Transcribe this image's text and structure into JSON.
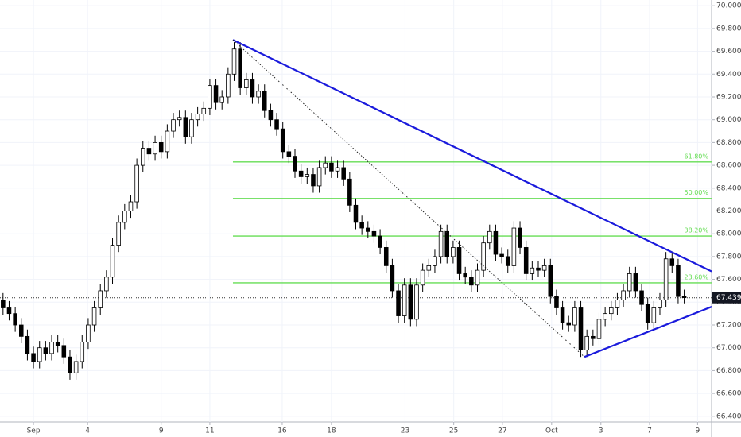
{
  "chart_data": {
    "type": "candlestick",
    "open": [
      67.42,
      67.35,
      67.3,
      67.2,
      67.1,
      66.95,
      66.88,
      67.0,
      66.95,
      67.05,
      67.02,
      66.92,
      66.78,
      66.88,
      67.05,
      67.2,
      67.35,
      67.5,
      67.62,
      67.9,
      68.1,
      68.2,
      68.28,
      68.6,
      68.75,
      68.7,
      68.8,
      68.72,
      68.9,
      69.0,
      69.02,
      68.85,
      69.0,
      69.05,
      69.1,
      69.3,
      69.15,
      69.2,
      69.4,
      69.62,
      69.28,
      69.35,
      69.2,
      69.25,
      69.08,
      69.0,
      68.92,
      68.72,
      68.68,
      68.55,
      68.5,
      68.52,
      68.42,
      68.58,
      68.62,
      68.55,
      68.58,
      68.48,
      68.25,
      68.1,
      68.05,
      68.02,
      67.98,
      67.88,
      67.72,
      67.5,
      67.28,
      67.55,
      67.25,
      67.55,
      67.68,
      67.72,
      67.8,
      68.02,
      67.8,
      67.88,
      67.65,
      67.62,
      67.55,
      67.68,
      67.92,
      68.02,
      67.82,
      67.8,
      67.72,
      68.05,
      67.88,
      67.65,
      67.7,
      67.68,
      67.72,
      67.45,
      67.35,
      67.22,
      67.2,
      67.35,
      66.98,
      67.1,
      67.08,
      67.25,
      67.3,
      67.35,
      67.42,
      67.5,
      67.65,
      67.5,
      67.38,
      67.22,
      67.35,
      67.42,
      67.78,
      67.72,
      67.45
    ],
    "high": [
      67.48,
      67.41,
      67.36,
      67.26,
      67.16,
      67.01,
      67.06,
      67.06,
      67.11,
      67.11,
      67.08,
      66.98,
      66.94,
      67.11,
      67.26,
      67.41,
      67.56,
      67.68,
      67.96,
      68.16,
      68.26,
      68.34,
      68.66,
      68.81,
      68.81,
      68.86,
      68.86,
      68.96,
      69.06,
      69.08,
      69.08,
      69.06,
      69.11,
      69.16,
      69.36,
      69.36,
      69.26,
      69.46,
      69.68,
      69.68,
      69.41,
      69.41,
      69.31,
      69.31,
      69.14,
      69.06,
      68.98,
      68.78,
      68.74,
      68.61,
      68.58,
      68.58,
      68.64,
      68.68,
      68.68,
      68.64,
      68.64,
      68.54,
      68.31,
      68.16,
      68.11,
      68.08,
      68.04,
      67.94,
      67.78,
      67.56,
      67.61,
      67.61,
      67.61,
      67.74,
      67.78,
      67.86,
      68.08,
      68.08,
      67.94,
      67.94,
      67.71,
      67.68,
      67.74,
      67.98,
      68.08,
      68.08,
      67.88,
      67.86,
      68.11,
      68.11,
      67.94,
      67.76,
      67.76,
      67.78,
      67.78,
      67.51,
      67.41,
      67.28,
      67.41,
      67.41,
      67.16,
      67.16,
      67.31,
      67.36,
      67.41,
      67.48,
      67.56,
      67.71,
      67.71,
      67.56,
      67.44,
      67.41,
      67.48,
      67.84,
      67.84,
      67.78,
      67.51
    ],
    "low": [
      67.29,
      67.24,
      67.14,
      67.04,
      66.89,
      66.82,
      66.82,
      66.89,
      66.89,
      66.96,
      66.86,
      66.72,
      66.72,
      66.82,
      66.99,
      67.14,
      67.29,
      67.44,
      67.56,
      67.84,
      68.04,
      68.14,
      68.22,
      68.54,
      68.64,
      68.64,
      68.66,
      68.66,
      68.84,
      68.94,
      68.79,
      68.79,
      68.94,
      68.99,
      69.04,
      69.09,
      69.09,
      69.14,
      69.34,
      69.22,
      69.22,
      69.14,
      69.14,
      69.02,
      68.94,
      68.86,
      68.66,
      68.62,
      68.49,
      68.44,
      68.44,
      68.36,
      68.36,
      68.52,
      68.49,
      68.49,
      68.42,
      68.19,
      68.04,
      67.99,
      67.96,
      67.92,
      67.82,
      67.66,
      67.44,
      67.22,
      67.22,
      67.19,
      67.19,
      67.49,
      67.62,
      67.66,
      67.74,
      67.74,
      67.74,
      67.59,
      67.56,
      67.49,
      67.49,
      67.62,
      67.86,
      67.76,
      67.74,
      67.66,
      67.66,
      67.82,
      67.59,
      67.59,
      67.62,
      67.62,
      67.39,
      67.29,
      67.16,
      67.14,
      67.14,
      66.92,
      66.92,
      67.02,
      67.02,
      67.19,
      67.24,
      67.29,
      67.36,
      67.44,
      67.44,
      67.32,
      67.16,
      67.16,
      67.29,
      67.36,
      67.66,
      67.39,
      67.39
    ],
    "close": [
      67.35,
      67.3,
      67.2,
      67.1,
      66.95,
      66.88,
      67.0,
      66.95,
      67.05,
      67.02,
      66.92,
      66.78,
      66.88,
      67.05,
      67.2,
      67.35,
      67.5,
      67.62,
      67.9,
      68.1,
      68.2,
      68.28,
      68.6,
      68.75,
      68.7,
      68.8,
      68.72,
      68.9,
      69.0,
      69.02,
      68.85,
      69.0,
      69.05,
      69.1,
      69.3,
      69.15,
      69.2,
      69.4,
      69.62,
      69.28,
      69.35,
      69.2,
      69.25,
      69.08,
      69.0,
      68.92,
      68.72,
      68.68,
      68.55,
      68.5,
      68.52,
      68.42,
      68.58,
      68.62,
      68.55,
      68.58,
      68.48,
      68.25,
      68.1,
      68.05,
      68.02,
      67.98,
      67.88,
      67.72,
      67.5,
      67.28,
      67.55,
      67.25,
      67.55,
      67.68,
      67.72,
      67.8,
      68.02,
      67.8,
      67.88,
      67.65,
      67.62,
      67.55,
      67.68,
      67.92,
      68.02,
      67.82,
      67.8,
      67.72,
      68.05,
      67.88,
      67.65,
      67.7,
      67.68,
      67.72,
      67.45,
      67.35,
      67.22,
      67.2,
      67.35,
      66.98,
      67.1,
      67.08,
      67.25,
      67.3,
      67.35,
      67.42,
      67.5,
      67.65,
      67.5,
      67.38,
      67.22,
      67.35,
      67.42,
      67.78,
      67.72,
      67.45,
      67.44
    ],
    "up_color": "#ffffff",
    "down_color": "#000000",
    "wick_color": "#000000",
    "xlim": [
      -0.5,
      116.5
    ],
    "xticks": [
      {
        "value": 5.0,
        "label": "Sep"
      },
      {
        "value": 13.9,
        "label": "4"
      },
      {
        "value": 26.0,
        "label": "9"
      },
      {
        "value": 34.0,
        "label": "11"
      },
      {
        "value": 45.9,
        "label": "16"
      },
      {
        "value": 54.0,
        "label": "18"
      },
      {
        "value": 66.1,
        "label": "23"
      },
      {
        "value": 74.1,
        "label": "25"
      },
      {
        "value": 82.1,
        "label": "27"
      },
      {
        "value": 90.2,
        "label": "Oct"
      },
      {
        "value": 98.3,
        "label": "3"
      },
      {
        "value": 106.3,
        "label": "7"
      },
      {
        "value": 114.2,
        "label": "9"
      }
    ],
    "ylim": [
      66.35,
      70.05
    ],
    "yticks": [
      {
        "value": 66.4,
        "label": "66.400"
      },
      {
        "value": 66.6,
        "label": "66.600"
      },
      {
        "value": 66.8,
        "label": "66.800"
      },
      {
        "value": 67.0,
        "label": "67.000"
      },
      {
        "value": 67.2,
        "label": "67.200"
      },
      {
        "value": 67.4,
        "label": "67.400"
      },
      {
        "value": 67.6,
        "label": "67.600"
      },
      {
        "value": 67.8,
        "label": "67.800"
      },
      {
        "value": 68.0,
        "label": "68.000"
      },
      {
        "value": 68.2,
        "label": "68.200"
      },
      {
        "value": 68.4,
        "label": "68.400"
      },
      {
        "value": 68.6,
        "label": "68.600"
      },
      {
        "value": 68.8,
        "label": "68.800"
      },
      {
        "value": 69.0,
        "label": "69.000"
      },
      {
        "value": 69.2,
        "label": "69.200"
      },
      {
        "value": 69.4,
        "label": "69.400"
      },
      {
        "value": 69.6,
        "label": "69.600"
      },
      {
        "value": 69.8,
        "label": "69.800"
      },
      {
        "value": 70.0,
        "label": "70.000"
      }
    ],
    "grid": true,
    "fib_start": 37.8,
    "fib_color": "#66dd55",
    "fib_levels": [
      {
        "value": 68.63,
        "label": "61.80%"
      },
      {
        "value": 68.31,
        "label": "50.00%"
      },
      {
        "value": 67.98,
        "label": "38.20%"
      },
      {
        "value": 67.57,
        "label": "23.60%"
      }
    ],
    "trendlines": [
      {
        "x": [
          37.8,
          116.5
        ],
        "y": [
          69.7,
          67.67
        ],
        "color": "#1a1adc",
        "style": "solid"
      },
      {
        "x": [
          95.6,
          116.5
        ],
        "y": [
          66.92,
          67.36
        ],
        "color": "#1a1adc",
        "style": "solid"
      },
      {
        "x": [
          37.8,
          95.6
        ],
        "y": [
          69.7,
          66.92
        ],
        "color": "#222222",
        "style": "dotted"
      }
    ],
    "last_price": {
      "value": 67.439,
      "label": "67.439"
    }
  }
}
